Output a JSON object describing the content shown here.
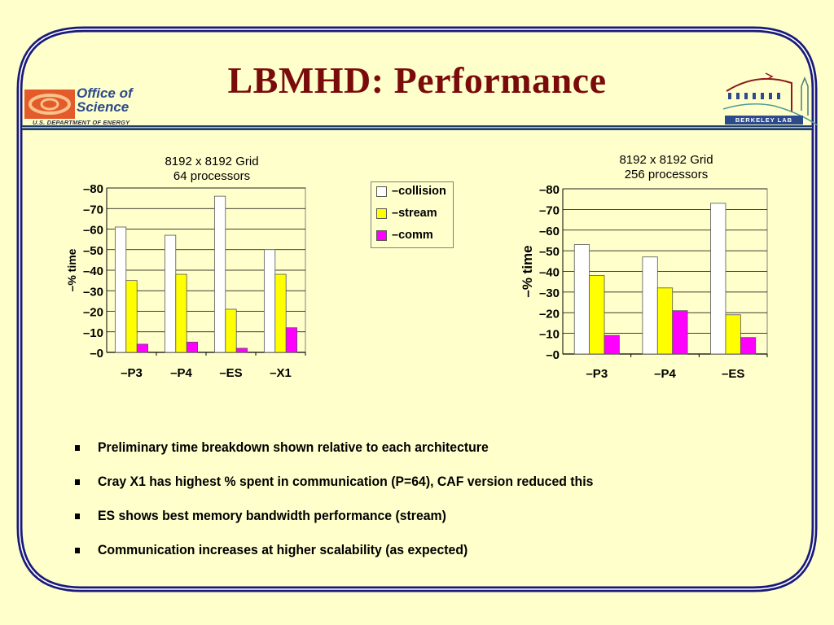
{
  "slide": {
    "title": "LBMHD: Performance",
    "logos": {
      "left": {
        "line1": "Office of",
        "line2": "Science",
        "subtitle": "U.S. DEPARTMENT OF ENERGY"
      },
      "right": {
        "label": "BERKELEY LAB"
      }
    },
    "colors": {
      "background": "#ffffcc",
      "title": "#7a0b0b",
      "border": "#1a1a7a",
      "collision": "#ffffff",
      "stream": "#ffff00",
      "comm": "#ff00ff"
    },
    "legend": [
      {
        "label": "–collision",
        "series": "collision"
      },
      {
        "label": "–stream",
        "series": "stream"
      },
      {
        "label": "–comm",
        "series": "comm"
      }
    ],
    "bullets": [
      "Preliminary time breakdown shown relative to each architecture",
      "Cray X1 has highest % spent in communication (P=64), CAF version reduced this",
      "ES shows best memory bandwidth performance (stream)",
      "Communication increases at higher scalability (as expected)"
    ]
  },
  "chart_data": [
    {
      "type": "bar",
      "title": "8192 x 8192 Grid",
      "subtitle": "64 processors",
      "xlabel": "",
      "ylabel": "–% time",
      "ylim": [
        0,
        80
      ],
      "yticks": [
        0,
        10,
        20,
        30,
        40,
        50,
        60,
        70,
        80
      ],
      "ytick_labels": [
        "–0",
        "–10",
        "–20",
        "–30",
        "–40",
        "–50",
        "–60",
        "–70",
        "–80"
      ],
      "categories": [
        "P3",
        "P4",
        "ES",
        "X1"
      ],
      "category_labels": [
        "–P3",
        "–P4",
        "–ES",
        "–X1"
      ],
      "grid": true,
      "legend": "right",
      "series": [
        {
          "name": "collision",
          "values": [
            61,
            57,
            76,
            50
          ]
        },
        {
          "name": "stream",
          "values": [
            35,
            38,
            21,
            38
          ]
        },
        {
          "name": "comm",
          "values": [
            4,
            5,
            2,
            12
          ]
        }
      ]
    },
    {
      "type": "bar",
      "title": "8192 x 8192 Grid",
      "subtitle": "256 processors",
      "xlabel": "",
      "ylabel": "–% time",
      "ylim": [
        0,
        80
      ],
      "yticks": [
        0,
        10,
        20,
        30,
        40,
        50,
        60,
        70,
        80
      ],
      "ytick_labels": [
        "–0",
        "–10",
        "–20",
        "–30",
        "–40",
        "–50",
        "–60",
        "–70",
        "–80"
      ],
      "categories": [
        "P3",
        "P4",
        "ES"
      ],
      "category_labels": [
        "–P3",
        "–P4",
        "–ES"
      ],
      "grid": true,
      "legend": "left",
      "series": [
        {
          "name": "collision",
          "values": [
            53,
            47,
            73
          ]
        },
        {
          "name": "stream",
          "values": [
            38,
            32,
            19
          ]
        },
        {
          "name": "comm",
          "values": [
            9,
            21,
            8
          ]
        }
      ]
    }
  ]
}
